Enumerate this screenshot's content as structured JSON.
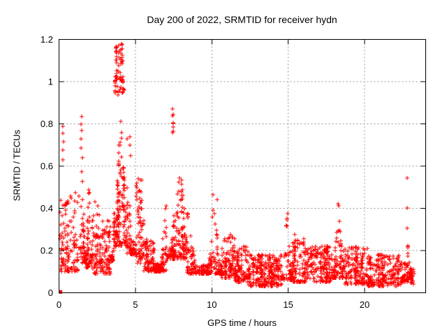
{
  "chart_data": {
    "type": "scatter",
    "title": "Day 200 of 2022, SRMTID for receiver hydn",
    "xlabel": "GPS time / hours",
    "ylabel": "SRMTID / TECUs",
    "xlim": [
      0,
      24
    ],
    "ylim": [
      0,
      1.2
    ],
    "xticks": [
      0,
      5,
      10,
      15,
      20
    ],
    "xtick_labels": [
      "0",
      "5",
      "10",
      "15",
      "20"
    ],
    "yticks": [
      0,
      0.2,
      0.4,
      0.6,
      0.8,
      1,
      1.2
    ],
    "ytick_labels": [
      "0",
      "0.2",
      "0.4",
      "0.6",
      "0.8",
      "1",
      "1.2"
    ],
    "grid": true,
    "legend": "none",
    "marker": "plus",
    "colors": {
      "marker": "#ff0000",
      "grid": "#999999",
      "axis": "#000000",
      "background": "#ffffff"
    },
    "cluster_format": [
      "t_start_h",
      "t_end_h",
      "y_min_TECU",
      "y_max_TECU",
      "count",
      "skew_exponent",
      "peak_time_h_optional"
    ],
    "clusters": [
      [
        0.03,
        0.5,
        0.1,
        0.45,
        45,
        1.6
      ],
      [
        0.5,
        1.3,
        0.1,
        0.48,
        75,
        1.7
      ],
      [
        1.3,
        1.75,
        0.14,
        0.58,
        55,
        1.5,
        1.5
      ],
      [
        1.75,
        2.15,
        0.12,
        0.62,
        55,
        1.7,
        1.95
      ],
      [
        2.15,
        3.4,
        0.09,
        0.38,
        150,
        1.6
      ],
      [
        3.4,
        3.65,
        0.15,
        0.55,
        35,
        1.3,
        3.65
      ],
      [
        3.65,
        4.45,
        0.22,
        0.92,
        130,
        1.3,
        4.05
      ],
      [
        3.65,
        4.35,
        0.93,
        1.06,
        40,
        1.0
      ],
      [
        3.7,
        4.25,
        1.07,
        1.18,
        28,
        1.0
      ],
      [
        4.45,
        5.05,
        0.18,
        0.75,
        70,
        1.8,
        4.45
      ],
      [
        5.05,
        5.55,
        0.14,
        0.55,
        75,
        1.5
      ],
      [
        5.55,
        6.25,
        0.1,
        0.26,
        80,
        1.4
      ],
      [
        6.25,
        7.0,
        0.1,
        0.42,
        90,
        1.6,
        7.0
      ],
      [
        7.0,
        8.35,
        0.16,
        0.62,
        160,
        1.5,
        7.9
      ],
      [
        7.42,
        7.5,
        0.63,
        0.87,
        7,
        1.0
      ],
      [
        8.35,
        9.7,
        0.09,
        0.42,
        130,
        1.7,
        8.35
      ],
      [
        9.7,
        10.6,
        0.09,
        0.47,
        95,
        1.8,
        10.15
      ],
      [
        10.6,
        11.5,
        0.07,
        0.28,
        95,
        1.5
      ],
      [
        11.5,
        12.4,
        0.05,
        0.22,
        110,
        1.5
      ],
      [
        12.4,
        14.6,
        0.03,
        0.18,
        250,
        1.3
      ],
      [
        14.6,
        15.25,
        0.06,
        0.38,
        65,
        2.2,
        14.95
      ],
      [
        15.25,
        16.1,
        0.05,
        0.28,
        90,
        1.8
      ],
      [
        16.1,
        17.85,
        0.05,
        0.22,
        190,
        1.4
      ],
      [
        17.85,
        18.6,
        0.07,
        0.42,
        85,
        2.0,
        18.3
      ],
      [
        18.6,
        20.2,
        0.04,
        0.22,
        160,
        1.6
      ],
      [
        20.2,
        22.45,
        0.03,
        0.18,
        210,
        1.4
      ],
      [
        22.45,
        23.05,
        0.05,
        0.27,
        70,
        1.5,
        22.8
      ],
      [
        23.0,
        23.3,
        0.04,
        0.12,
        18,
        1.2
      ]
    ],
    "outliers": [
      [
        0.27,
        0.79
      ],
      [
        0.26,
        0.755
      ],
      [
        0.28,
        0.715
      ],
      [
        0.265,
        0.675
      ],
      [
        0.27,
        0.63
      ],
      [
        1.48,
        0.835
      ],
      [
        1.45,
        0.8
      ],
      [
        1.5,
        0.77
      ],
      [
        1.46,
        0.73
      ],
      [
        1.44,
        0.685
      ],
      [
        1.52,
        0.64
      ],
      [
        2.35,
        0.43
      ],
      [
        2.52,
        0.41
      ],
      [
        4.62,
        0.74
      ],
      [
        4.66,
        0.7
      ],
      [
        4.7,
        0.65
      ],
      [
        6.95,
        0.4
      ],
      [
        7.45,
        0.87
      ],
      [
        10.08,
        0.465
      ],
      [
        10.36,
        0.44
      ],
      [
        14.95,
        0.375
      ],
      [
        14.93,
        0.345
      ],
      [
        18.25,
        0.42
      ],
      [
        18.3,
        0.41
      ],
      [
        22.8,
        0.545
      ],
      [
        22.8,
        0.403
      ],
      [
        22.78,
        0.305
      ]
    ],
    "origin_point": [
      0.1,
      0.004
    ]
  }
}
